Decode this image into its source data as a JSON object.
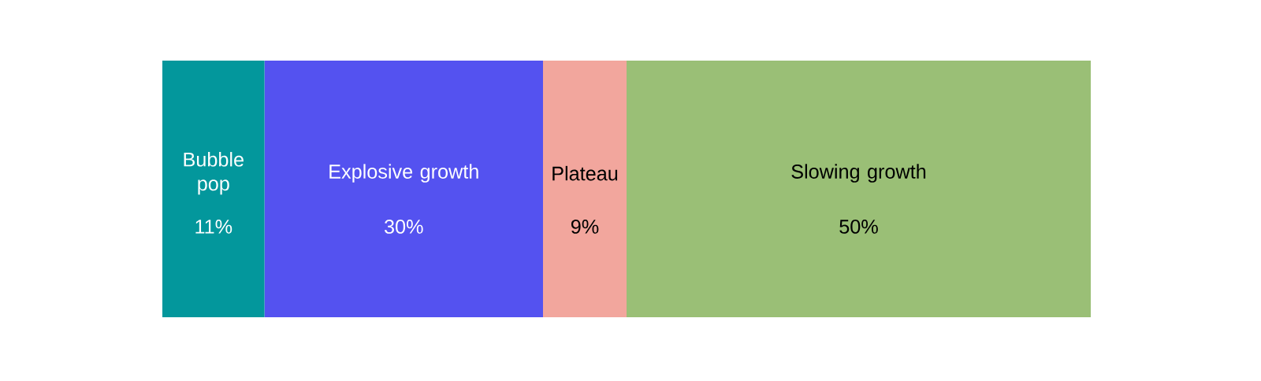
{
  "chart_data": {
    "type": "bar",
    "orientation": "horizontal",
    "stacked": true,
    "categories": [
      null
    ],
    "series": [
      {
        "name": "Bubble pop",
        "color": "#03979c",
        "values": [
          11
        ],
        "value_labels": [
          "11%"
        ]
      },
      {
        "name": "Explosive growth",
        "color": "#5452f0",
        "values": [
          30
        ],
        "value_labels": [
          "30%"
        ]
      },
      {
        "name": "Plateau",
        "color": "#f2a69d",
        "values": [
          9
        ],
        "value_labels": [
          "9%"
        ]
      },
      {
        "name": "Slowing growth",
        "color": "#9abf76",
        "values": [
          50
        ],
        "value_labels": [
          "50%"
        ]
      }
    ]
  }
}
